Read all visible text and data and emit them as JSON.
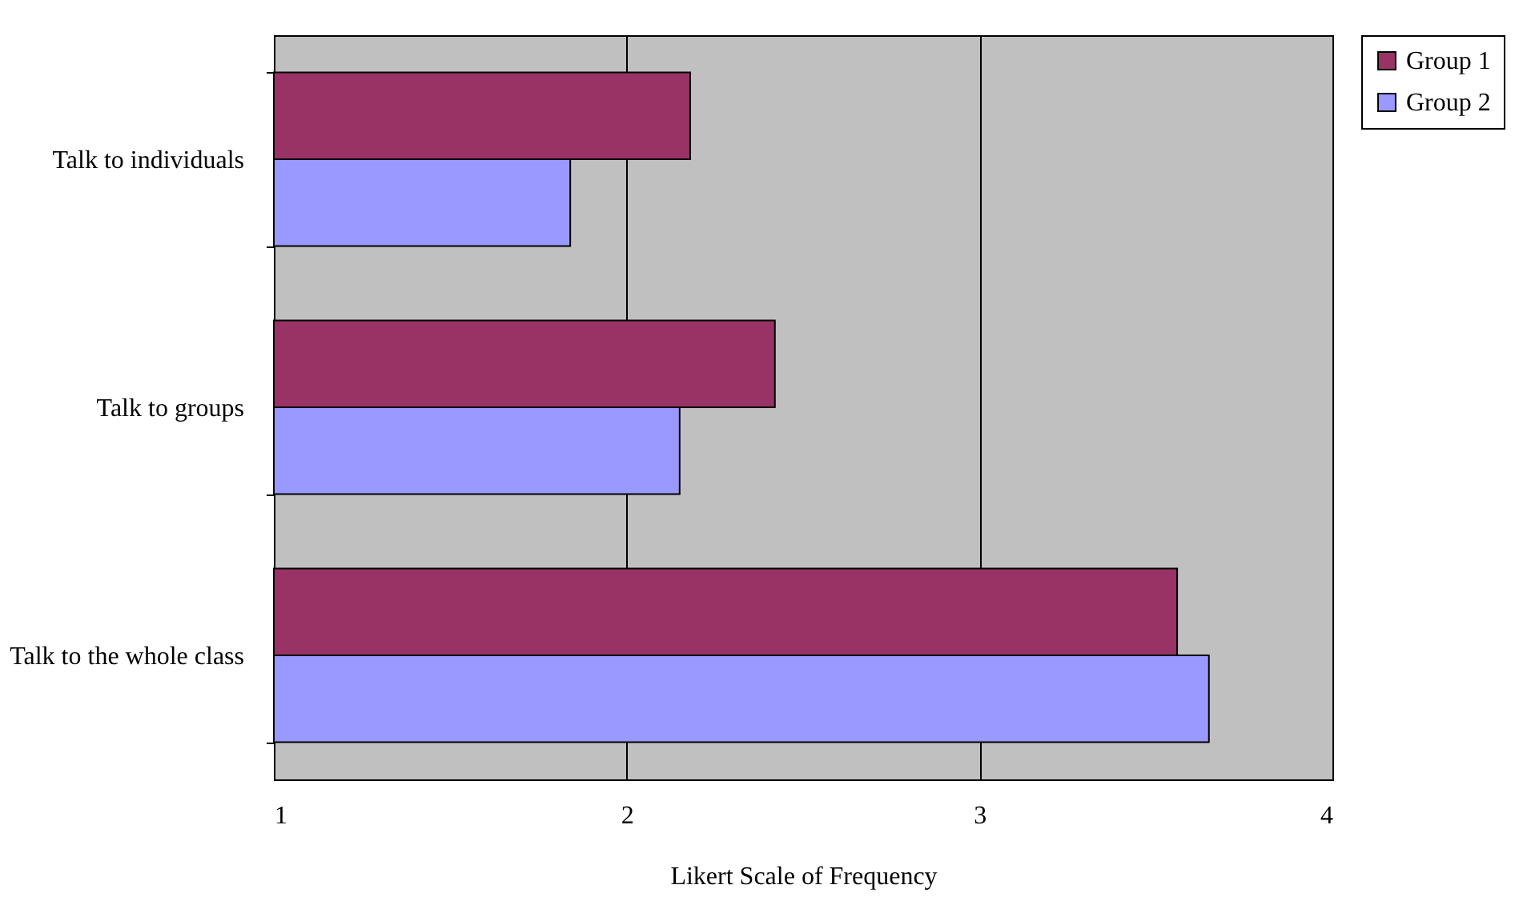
{
  "chart_data": {
    "type": "bar",
    "orientation": "horizontal",
    "categories": [
      "Talk to individuals",
      "Talk to groups",
      "Talk to the whole class"
    ],
    "series": [
      {
        "name": "Group 1",
        "color": "#993366",
        "values": [
          2.18,
          2.42,
          3.56
        ]
      },
      {
        "name": "Group 2",
        "color": "#9999ff",
        "values": [
          1.84,
          2.15,
          3.65
        ]
      }
    ],
    "xlabel": "Likert Scale of Frequency",
    "xlim": [
      1,
      4
    ],
    "xticks": [
      1,
      2,
      3,
      4
    ],
    "grid": "x",
    "legend": "right"
  }
}
